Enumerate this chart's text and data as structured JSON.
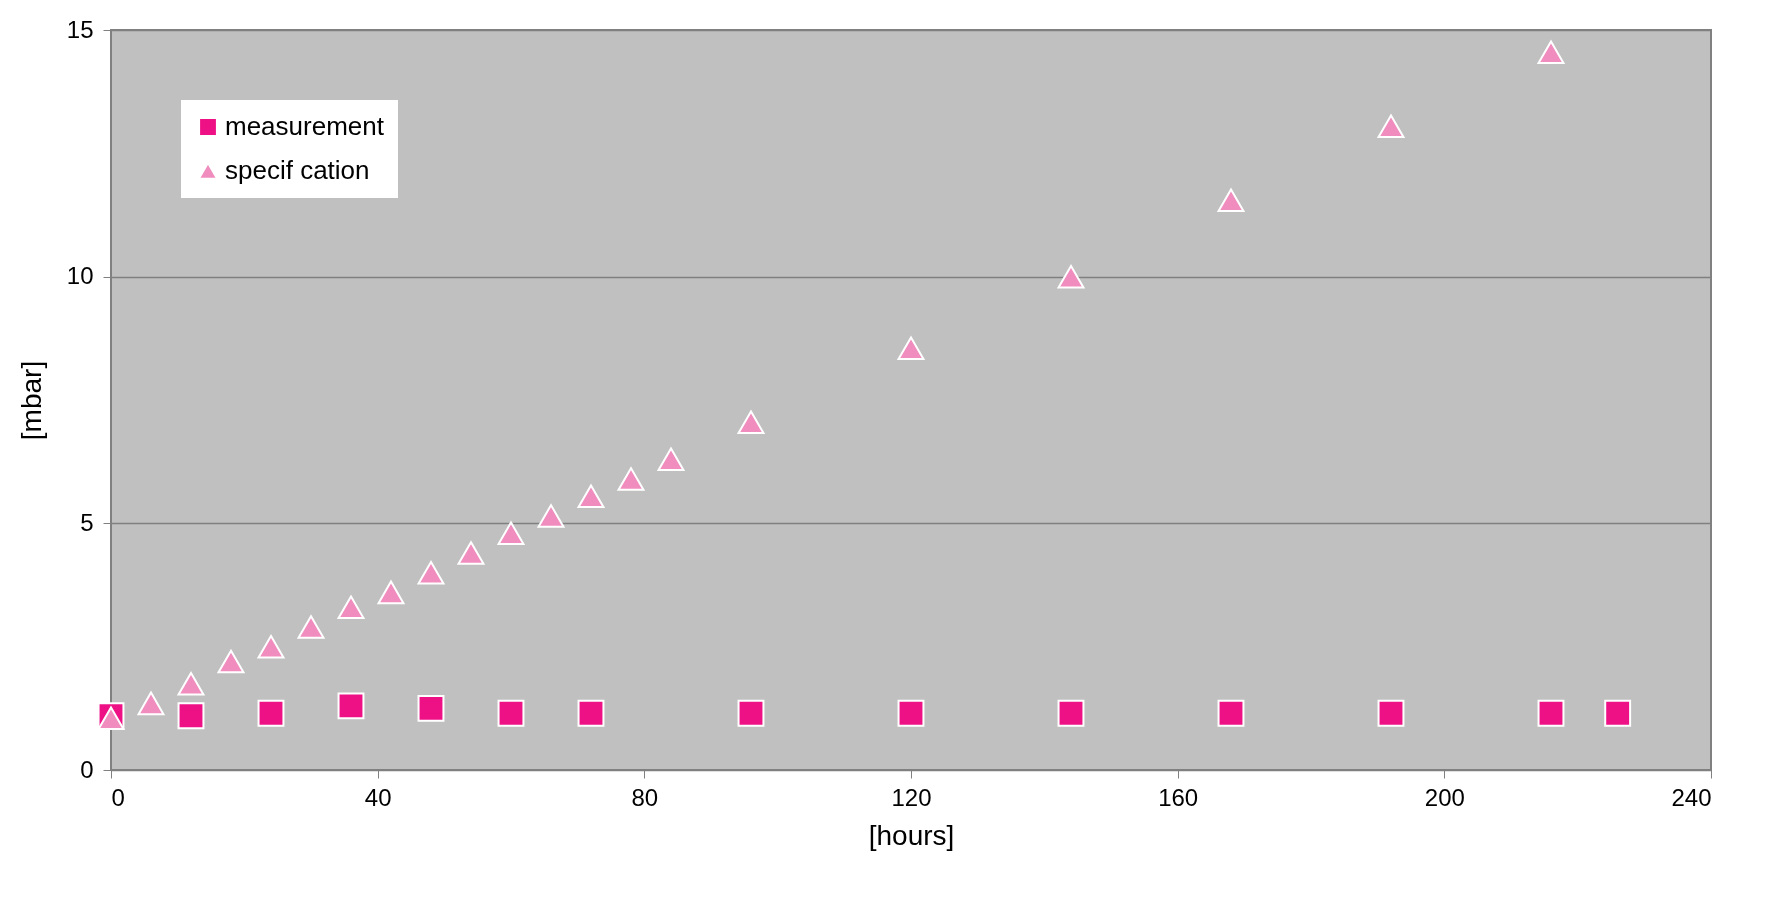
{
  "chart_data": {
    "type": "scatter",
    "xlabel": "[hours]",
    "ylabel": "[mbar]",
    "xlim": [
      0,
      240
    ],
    "xticks": [
      0,
      40,
      80,
      120,
      160,
      200,
      240
    ],
    "ylim": [
      0,
      15
    ],
    "yticks": [
      0,
      5,
      10,
      15
    ],
    "grid": "y",
    "legend": "top left",
    "series": [
      {
        "name": "measurement",
        "color": "#ee1186",
        "marker": "square",
        "x": [
          0,
          12,
          24,
          36,
          48,
          60,
          72,
          96,
          120,
          144,
          168,
          192,
          216,
          226
        ],
        "values": [
          1.1,
          1.1,
          1.15,
          1.3,
          1.25,
          1.15,
          1.15,
          1.15,
          1.15,
          1.15,
          1.15,
          1.15,
          1.15,
          1.15
        ]
      },
      {
        "name": "specif cation",
        "color": "#f08cbe",
        "marker": "triangle",
        "x": [
          0,
          6,
          12,
          18,
          24,
          30,
          36,
          42,
          48,
          54,
          60,
          66,
          72,
          78,
          84,
          96,
          120,
          144,
          168,
          192,
          216
        ],
        "values": [
          1.05,
          1.35,
          1.75,
          2.2,
          2.5,
          2.9,
          3.3,
          3.6,
          4.0,
          4.4,
          4.8,
          5.15,
          5.55,
          5.9,
          6.3,
          7.05,
          8.55,
          10.0,
          11.55,
          13.05,
          14.55
        ]
      }
    ]
  }
}
